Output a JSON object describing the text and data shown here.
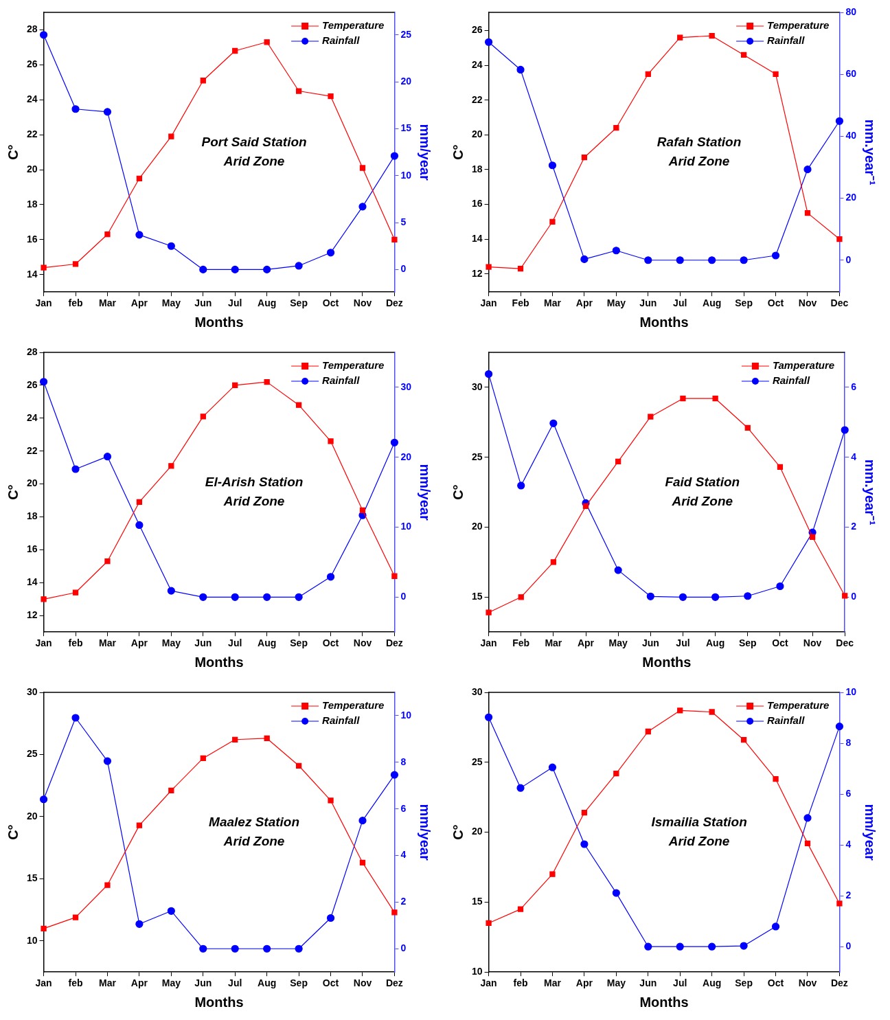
{
  "chart_data": [
    {
      "type": "line",
      "categories": [
        "Jan",
        "feb",
        "Mar",
        "Apr",
        "May",
        "Jun",
        "Jul",
        "Aug",
        "Sep",
        "Oct",
        "Nov",
        "Dez"
      ],
      "xlabel": "Months",
      "ylabel": "C°",
      "y2label": "mm/year",
      "ylim": [
        13,
        29
      ],
      "yticks": [
        14,
        16,
        18,
        20,
        22,
        24,
        26,
        28
      ],
      "y2lim": [
        -2.4,
        27.4
      ],
      "y2ticks": [
        0,
        5,
        10,
        15,
        20,
        25
      ],
      "grid": false,
      "legend": "top right",
      "line_style": "solid",
      "annotations": [
        "Port Said Station",
        "Arid Zone"
      ],
      "series": [
        {
          "name": "Temperature",
          "color": "#ff0000",
          "marker": "square",
          "values": [
            14.4,
            14.6,
            16.3,
            19.5,
            21.9,
            25.1,
            26.8,
            27.3,
            24.5,
            24.2,
            20.1,
            16.0
          ]
        },
        {
          "name": "Rainfall",
          "color": "#0000ff",
          "marker": "circle",
          "axis": "y2",
          "values": [
            25.0,
            17.1,
            16.8,
            3.7,
            2.5,
            0,
            0,
            0,
            0.4,
            1.8,
            6.7,
            12.1
          ]
        }
      ]
    },
    {
      "type": "line",
      "categories": [
        "Jan",
        "Feb",
        "Mar",
        "Apr",
        "May",
        "Jun",
        "Jul",
        "Aug",
        "Sep",
        "Oct",
        "Nov",
        "Dec"
      ],
      "xlabel": "Months",
      "ylabel": "C°",
      "y2label": "mm.year⁻¹",
      "ylim": [
        10.95,
        27.05
      ],
      "yticks": [
        12,
        14,
        16,
        18,
        20,
        22,
        24,
        26
      ],
      "y2lim": [
        -10.3,
        80
      ],
      "y2ticks": [
        0,
        20,
        40,
        60,
        80
      ],
      "grid": false,
      "legend": "top right",
      "line_style": "solid",
      "annotations": [
        "Rafah Station",
        "Arid Zone"
      ],
      "series": [
        {
          "name": "Temperature",
          "color": "#ff0000",
          "marker": "square",
          "values": [
            12.4,
            12.3,
            15.0,
            18.7,
            20.4,
            23.5,
            25.6,
            25.7,
            24.6,
            23.5,
            15.5,
            14.0
          ]
        },
        {
          "name": "Rainfall",
          "color": "#0000ff",
          "marker": "circle",
          "axis": "y2",
          "values": [
            70.4,
            61.5,
            30.6,
            0.3,
            3.1,
            0,
            0,
            0,
            0,
            1.5,
            29.3,
            44.9
          ]
        }
      ]
    },
    {
      "type": "line",
      "categories": [
        "Jan",
        "feb",
        "Mar",
        "Apr",
        "May",
        "Jun",
        "Jul",
        "Aug",
        "Sep",
        "Oct",
        "Nov",
        "Dez"
      ],
      "xlabel": "Months",
      "ylabel": "C°",
      "y2label": "mm/year",
      "ylim": [
        11,
        28
      ],
      "yticks": [
        12,
        14,
        16,
        18,
        20,
        22,
        24,
        26,
        28
      ],
      "y2lim": [
        -5,
        35
      ],
      "y2ticks": [
        0,
        10,
        20,
        30
      ],
      "grid": false,
      "legend": "top right",
      "line_style": "solid",
      "annotations": [
        "El-Arish Station",
        "Arid Zone"
      ],
      "series": [
        {
          "name": "Temperature",
          "color": "#ff0000",
          "marker": "square",
          "values": [
            13.0,
            13.4,
            15.3,
            18.9,
            21.1,
            24.1,
            26.0,
            26.2,
            24.8,
            22.6,
            18.4,
            14.4
          ]
        },
        {
          "name": "Rainfall",
          "color": "#0000ff",
          "marker": "circle",
          "axis": "y2",
          "values": [
            30.8,
            18.3,
            20.1,
            10.3,
            0.9,
            0,
            0,
            0,
            0,
            2.9,
            11.7,
            22.1
          ]
        }
      ]
    },
    {
      "type": "line",
      "categories": [
        "Jan",
        "Feb",
        "Mar",
        "Apr",
        "May",
        "Jun",
        "Jul",
        "Aug",
        "Sep",
        "Oct",
        "Nov",
        "Dec"
      ],
      "xlabel": "Months",
      "ylabel": "C°",
      "y2label": "mm.year⁻¹",
      "ylim": [
        12.5,
        32.5
      ],
      "yticks": [
        15,
        20,
        25,
        30
      ],
      "y2lim": [
        -1,
        7
      ],
      "y2ticks": [
        0,
        2,
        4,
        6
      ],
      "grid": false,
      "legend": "top right",
      "line_style": "solid",
      "annotations": [
        "Faid Station",
        "Arid Zone"
      ],
      "series": [
        {
          "name": "Tamperature",
          "color": "#ff0000",
          "marker": "square",
          "values": [
            13.9,
            15.0,
            17.5,
            21.5,
            24.7,
            27.9,
            29.2,
            29.2,
            27.1,
            24.3,
            19.3,
            15.1
          ]
        },
        {
          "name": "Rainfall",
          "color": "#0000ff",
          "marker": "circle",
          "axis": "y2",
          "values": [
            6.38,
            3.19,
            4.97,
            2.69,
            0.77,
            0.02,
            0,
            0,
            0.03,
            0.31,
            1.85,
            4.78
          ]
        }
      ]
    },
    {
      "type": "line",
      "categories": [
        "Jan",
        "feb",
        "Mar",
        "Apr",
        "May",
        "Jun",
        "Jul",
        "Aug",
        "Sep",
        "Oct",
        "Nov",
        "Dez"
      ],
      "xlabel": "Months",
      "ylabel": "C°",
      "y2label": "mm/year",
      "ylim": [
        7.5,
        30
      ],
      "yticks": [
        10,
        15,
        20,
        25,
        30
      ],
      "y2lim": [
        -1,
        11
      ],
      "y2ticks": [
        0,
        2,
        4,
        6,
        8,
        10
      ],
      "grid": false,
      "legend": "top right",
      "line_style": "solid",
      "annotations": [
        "Maalez Station",
        "Arid Zone"
      ],
      "series": [
        {
          "name": "Temperature",
          "color": "#ff0000",
          "marker": "square",
          "values": [
            11.0,
            11.9,
            14.5,
            19.3,
            22.1,
            24.7,
            26.2,
            26.3,
            24.1,
            21.3,
            16.3,
            12.3
          ]
        },
        {
          "name": "Rainfall",
          "color": "#0000ff",
          "marker": "circle",
          "axis": "y2",
          "values": [
            6.41,
            9.91,
            8.05,
            1.06,
            1.62,
            0,
            0,
            0,
            0,
            1.32,
            5.5,
            7.46
          ]
        }
      ]
    },
    {
      "type": "line",
      "categories": [
        "Jan",
        "feb",
        "Mar",
        "Apr",
        "May",
        "Jun",
        "Jul",
        "Aug",
        "Sep",
        "Oct",
        "Nov",
        "Dez"
      ],
      "xlabel": "Months",
      "ylabel": "C°",
      "y2label": "mm/year",
      "ylim": [
        10,
        30
      ],
      "yticks": [
        10,
        15,
        20,
        25,
        30
      ],
      "y2lim": [
        -1,
        10
      ],
      "y2ticks": [
        0,
        2,
        4,
        6,
        8,
        10
      ],
      "grid": false,
      "legend": "top right",
      "line_style": "solid",
      "annotations": [
        "Ismailia Station",
        "Arid Zone"
      ],
      "series": [
        {
          "name": "Temperature",
          "color": "#ff0000",
          "marker": "square",
          "values": [
            13.5,
            14.5,
            17.0,
            21.4,
            24.2,
            27.2,
            28.7,
            28.6,
            26.6,
            23.8,
            19.2,
            14.9
          ]
        },
        {
          "name": "Rainfall",
          "color": "#0000ff",
          "marker": "circle",
          "axis": "y2",
          "values": [
            9.02,
            6.24,
            7.05,
            4.03,
            2.11,
            0,
            0,
            0,
            0.03,
            0.79,
            5.06,
            8.66
          ]
        }
      ]
    }
  ]
}
